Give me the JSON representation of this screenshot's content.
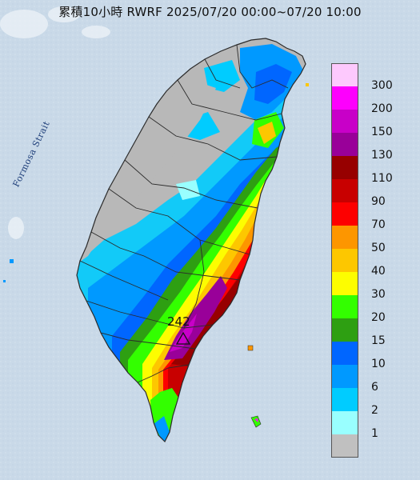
{
  "title": "累積10小時 RWRF 2025/07/20 00:00~07/20 10:00",
  "strait_label": "Formosa Strait",
  "max_value_label": "242",
  "colors": {
    "sea": "#c9d9e8",
    "land": "#b8b8b8",
    "border": "#2b2b2b"
  },
  "legend": {
    "items": [
      {
        "label": "300",
        "color": "#fdc9fd"
      },
      {
        "label": "200",
        "color": "#fd00fd"
      },
      {
        "label": "150",
        "color": "#c800c8"
      },
      {
        "label": "130",
        "color": "#990099"
      },
      {
        "label": "110",
        "color": "#970000"
      },
      {
        "label": "90",
        "color": "#c80000"
      },
      {
        "label": "70",
        "color": "#fd0000"
      },
      {
        "label": "50",
        "color": "#fd9600"
      },
      {
        "label": "40",
        "color": "#fdc700"
      },
      {
        "label": "30",
        "color": "#fdfd00"
      },
      {
        "label": "20",
        "color": "#33ff00"
      },
      {
        "label": "15",
        "color": "#2e9f12"
      },
      {
        "label": "10",
        "color": "#0066ff"
      },
      {
        "label": "6",
        "color": "#0099ff"
      },
      {
        "label": "2",
        "color": "#00ccff"
      },
      {
        "label": "1",
        "color": "#99ffff"
      },
      {
        "label": "",
        "color": "#c0c0c0"
      }
    ]
  }
}
